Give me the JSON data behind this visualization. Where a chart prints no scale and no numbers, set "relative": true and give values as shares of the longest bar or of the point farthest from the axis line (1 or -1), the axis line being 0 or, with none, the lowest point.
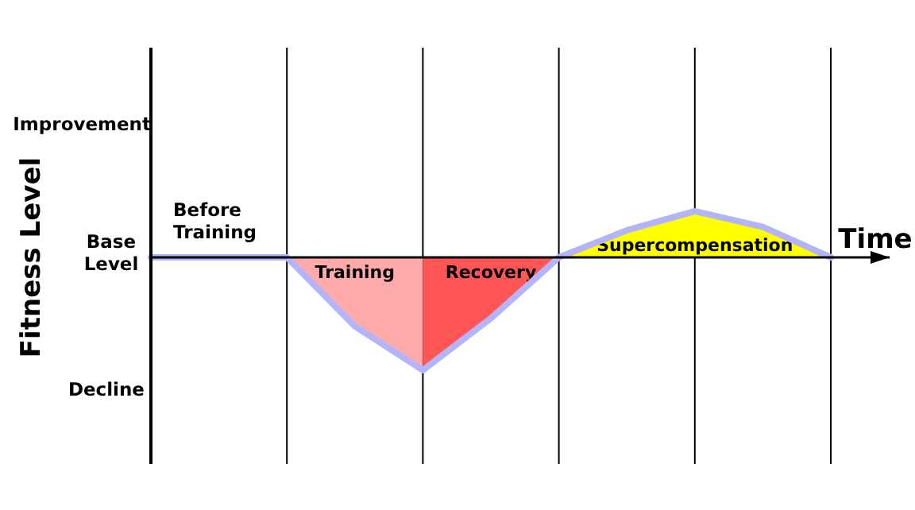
{
  "chart_data": {
    "type": "area",
    "relative": true,
    "xlabel": "Time",
    "ylabel": "Fitness Level",
    "categories": [
      null,
      null,
      null,
      null,
      null,
      null,
      null,
      null,
      null,
      null,
      null
    ],
    "grid": "x",
    "series": [
      {
        "name": "Training",
        "color": "#ffaaaa",
        "values": [
          null,
          null,
          0,
          -0.61,
          -1,
          null,
          null,
          null,
          null,
          null,
          null
        ]
      },
      {
        "name": "Recovery",
        "color": "#ff5555",
        "values": [
          null,
          null,
          null,
          null,
          -1,
          -0.54,
          0,
          null,
          null,
          null,
          null
        ]
      },
      {
        "name": "Supercompensation",
        "color": "#ffff00",
        "values": [
          null,
          null,
          null,
          null,
          null,
          null,
          0,
          0.24,
          0.41,
          0.27,
          0
        ]
      },
      {
        "type": "line",
        "color": "#b4b4f8",
        "values": [
          0,
          0,
          0,
          -0.61,
          -1,
          -0.54,
          0,
          0.24,
          0.41,
          0.27,
          0
        ]
      }
    ],
    "annotations": [
      "Improvement",
      "Base Level",
      "Decline",
      "Before Training"
    ]
  }
}
